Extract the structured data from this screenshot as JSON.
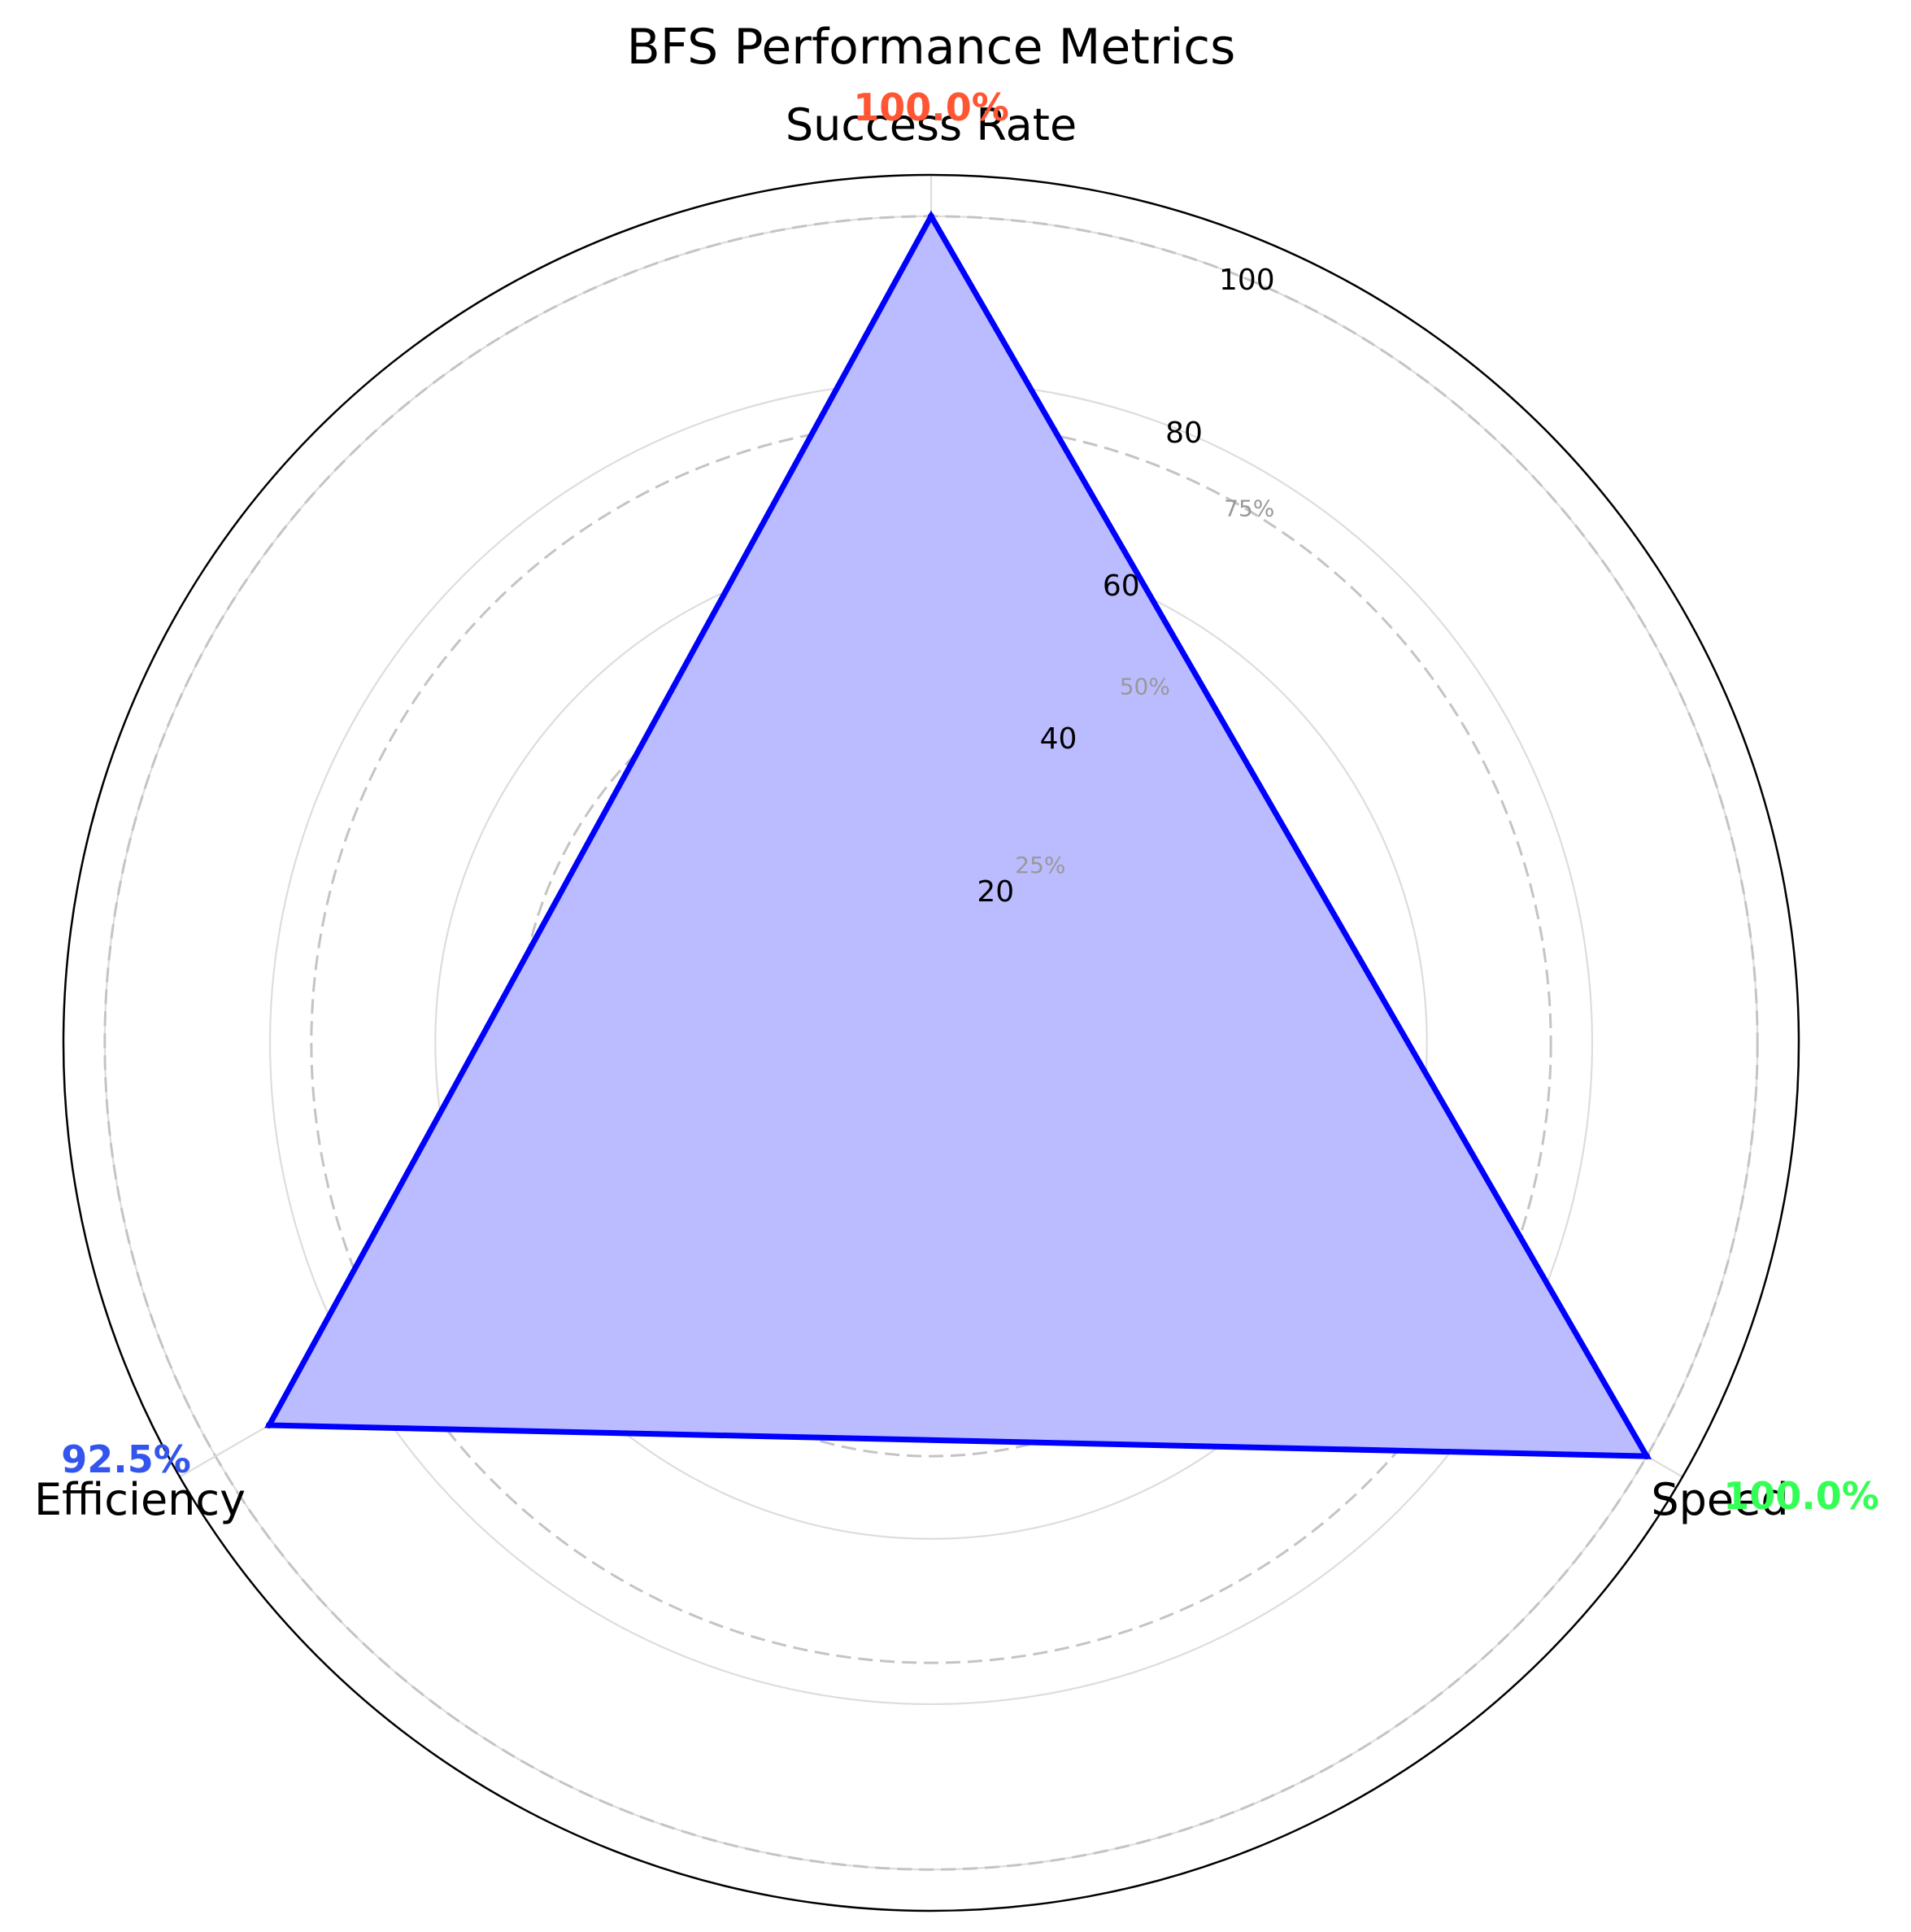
{
  "chart_data": {
    "type": "radar",
    "title": "BFS Performance Metrics",
    "categories": [
      "Success Rate",
      "Speed",
      "Efficiency"
    ],
    "series": [
      {
        "values": [
          100.0,
          100.0,
          92.5
        ],
        "color": "#0000ff",
        "fill": "#bbbbff"
      }
    ],
    "value_labels": [
      {
        "text": "100.0%",
        "color": "#ff5533"
      },
      {
        "text": "100.0%",
        "color": "#33ff55"
      },
      {
        "text": "92.5%",
        "color": "#3355ee"
      }
    ],
    "r_ticks": [
      20,
      40,
      60,
      80,
      100
    ],
    "r_max": 105,
    "reference_rings": [
      {
        "value": 25,
        "label": "25%"
      },
      {
        "value": 50,
        "label": "50%"
      },
      {
        "value": 75,
        "label": "75%"
      },
      {
        "value": 100,
        "label": ""
      }
    ],
    "grid": true
  }
}
